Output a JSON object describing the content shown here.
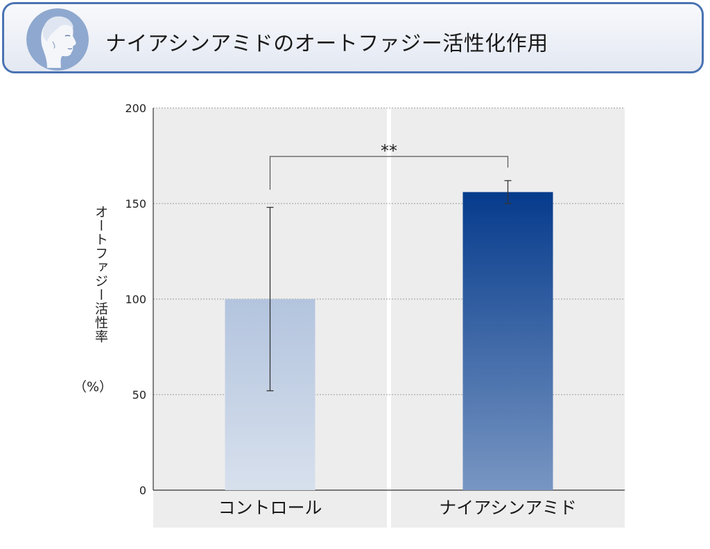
{
  "header": {
    "title": "ナイアシンアミドのオートファジー活性化作用"
  },
  "colors": {
    "header_border": "#4a73b3",
    "control_bar": "#b6c7e0",
    "niacinamide_bar": "#123f8c",
    "panel_bg": "#ededed"
  },
  "chart_data": {
    "type": "bar",
    "categories": [
      "コントロール",
      "ナイアシンアミド"
    ],
    "values": [
      100,
      156
    ],
    "error": [
      48,
      6
    ],
    "ylabel": "オートファジー活性率",
    "yunit": "（%）",
    "ylim": [
      0,
      200
    ],
    "yticks": [
      0,
      50,
      100,
      150,
      200
    ],
    "grid": true,
    "significance": {
      "from": 0,
      "to": 1,
      "label": "**"
    }
  }
}
